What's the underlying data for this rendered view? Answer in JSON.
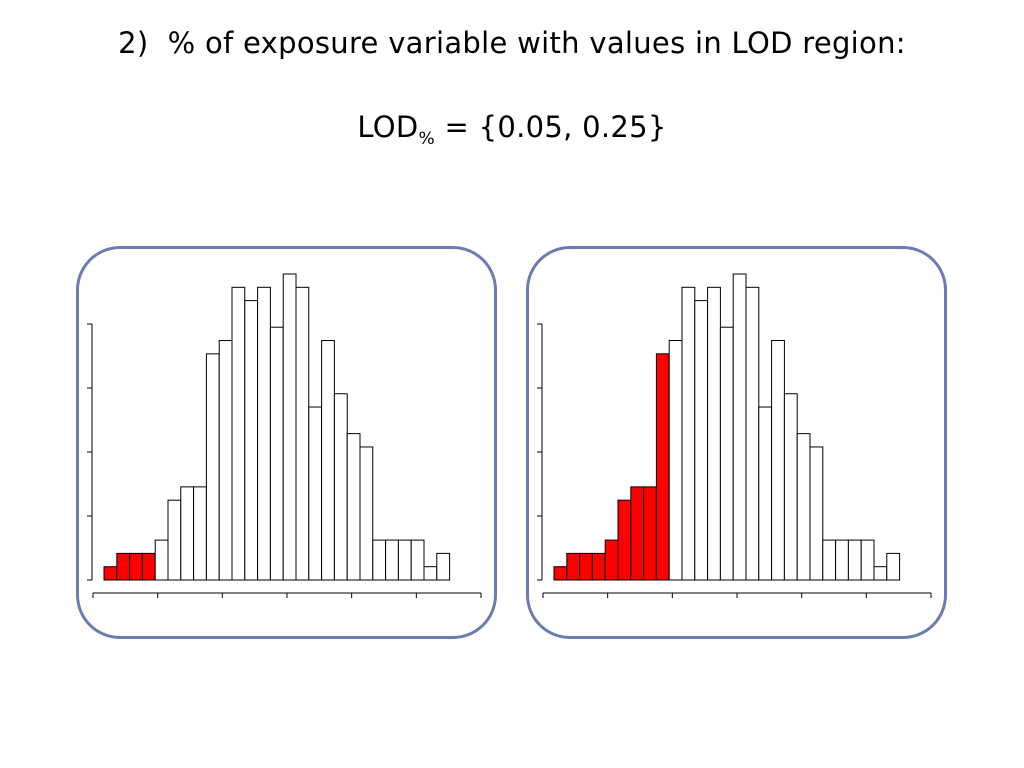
{
  "heading": {
    "number": "2)",
    "text": "% of exposure variable with values in LOD region:"
  },
  "formula": {
    "main": "LOD",
    "subscript": "%",
    "rest": " = {0.05, 0.25}"
  },
  "colors": {
    "panel_border": "#6c7bb0",
    "highlight_fill": "#ff0000",
    "bar_fill": "#ffffff",
    "bar_stroke": "#000000"
  },
  "chart_data": [
    {
      "type": "bar",
      "panel": "left",
      "values": [
        1,
        2,
        2,
        2,
        3,
        6,
        7,
        7,
        17,
        18,
        22,
        21,
        22,
        19,
        23,
        22,
        13,
        18,
        14,
        11,
        10,
        3,
        3,
        3,
        3,
        1,
        2
      ],
      "highlighted_bins": 4,
      "highlight_fraction": 0.05,
      "x_ticks": 7,
      "y_ticks": 5,
      "ylim": [
        0,
        23
      ]
    },
    {
      "type": "bar",
      "panel": "right",
      "values": [
        1,
        2,
        2,
        2,
        3,
        6,
        7,
        7,
        17,
        18,
        22,
        21,
        22,
        19,
        23,
        22,
        13,
        18,
        14,
        11,
        10,
        3,
        3,
        3,
        3,
        1,
        2
      ],
      "highlighted_bins": 9,
      "highlight_fraction": 0.25,
      "x_ticks": 7,
      "y_ticks": 5,
      "ylim": [
        0,
        23
      ]
    }
  ]
}
